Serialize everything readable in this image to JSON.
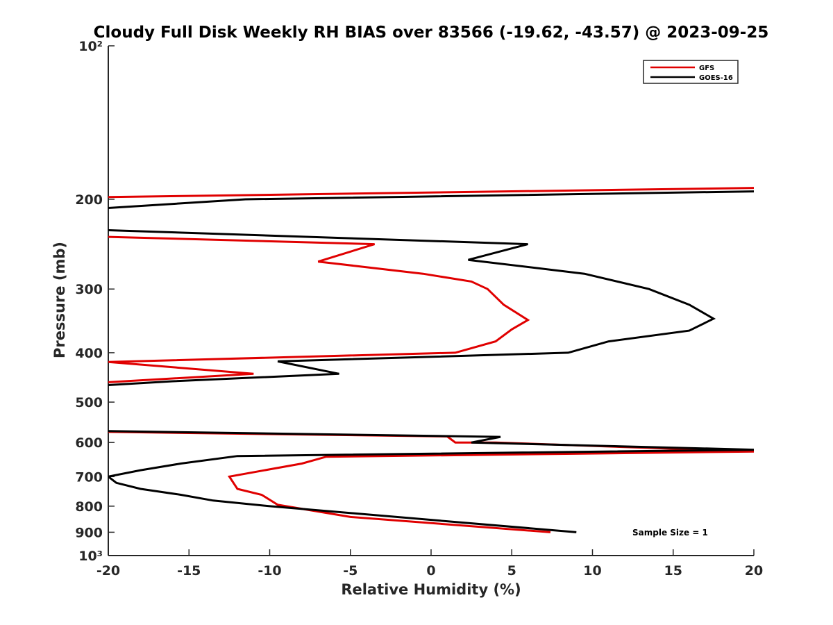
{
  "chart_data": {
    "type": "line",
    "title": "Cloudy Full Disk Weekly RH BIAS over 83566 (-19.62, -43.57) @ 2023-09-25",
    "xlabel": "Relative Humidity (%)",
    "ylabel": "Pressure (mb)",
    "xlim": [
      -20,
      20
    ],
    "ylim": [
      100,
      1000
    ],
    "y_scale": "log",
    "y_reversed": true,
    "grid": false,
    "legend_position": "top-right",
    "x_ticks": [
      -20,
      -15,
      -10,
      -5,
      0,
      5,
      10,
      15,
      20
    ],
    "x_tick_labels": [
      "-20",
      "-15",
      "-10",
      "-5",
      "0",
      "5",
      "10",
      "15",
      "20"
    ],
    "y_ticks": [
      100,
      200,
      300,
      400,
      500,
      600,
      700,
      800,
      900,
      1000
    ],
    "y_tick_labels": [
      "10²",
      "200",
      "300",
      "400",
      "500",
      "600",
      "700",
      "800",
      "900",
      "10³"
    ],
    "series": [
      {
        "name": "GFS",
        "color": "#e00000",
        "segments": [
          [
            [
              20,
              190
            ],
            [
              -20,
              198
            ]
          ],
          [
            [
              -20,
              237
            ],
            [
              -3.5,
              245
            ],
            [
              -7,
              265
            ],
            [
              -0.5,
              280
            ],
            [
              2.5,
              290
            ],
            [
              3.5,
              300
            ],
            [
              4.5,
              322
            ],
            [
              6,
              345
            ],
            [
              5,
              360
            ],
            [
              4,
              380
            ],
            [
              1.5,
              400
            ],
            [
              -20,
              417
            ],
            [
              -11,
              440
            ],
            [
              -20,
              457
            ]
          ],
          [
            [
              -20,
              572
            ],
            [
              1,
              584
            ],
            [
              1.5,
              600
            ],
            [
              4,
              600
            ],
            [
              20,
              625
            ],
            [
              -6.5,
              640
            ],
            [
              -8,
              660
            ],
            [
              -12.5,
              700
            ],
            [
              -12,
              740
            ],
            [
              -10.5,
              760
            ],
            [
              -9.5,
              795
            ],
            [
              -5,
              840
            ],
            [
              7.4,
              900
            ]
          ]
        ]
      },
      {
        "name": "GOES-16",
        "color": "#000000",
        "segments": [
          [
            [
              20,
              193
            ],
            [
              -11.5,
              200
            ],
            [
              -20,
              208
            ]
          ],
          [
            [
              -20,
              230
            ],
            [
              6,
              245
            ],
            [
              2.3,
              263
            ],
            [
              9.5,
              280
            ],
            [
              13.5,
              300
            ],
            [
              16,
              322
            ],
            [
              17.5,
              343
            ],
            [
              16,
              362
            ],
            [
              11,
              380
            ],
            [
              8.5,
              400
            ],
            [
              -9.5,
              416
            ],
            [
              -5.7,
              440
            ],
            [
              -16,
              455
            ],
            [
              -20,
              463
            ]
          ],
          [
            [
              -20,
              570
            ],
            [
              4.3,
              585
            ],
            [
              2.5,
              600
            ],
            [
              20,
              620
            ],
            [
              -12,
              638
            ],
            [
              -15.5,
              660
            ],
            [
              -18,
              680
            ],
            [
              -20,
              700
            ],
            [
              -19.5,
              720
            ],
            [
              -18,
              740
            ],
            [
              -15.5,
              760
            ],
            [
              -13.5,
              780
            ],
            [
              -10,
              800
            ],
            [
              9,
              900
            ]
          ]
        ]
      }
    ],
    "annotations": [
      "Sample Size = 1"
    ]
  }
}
